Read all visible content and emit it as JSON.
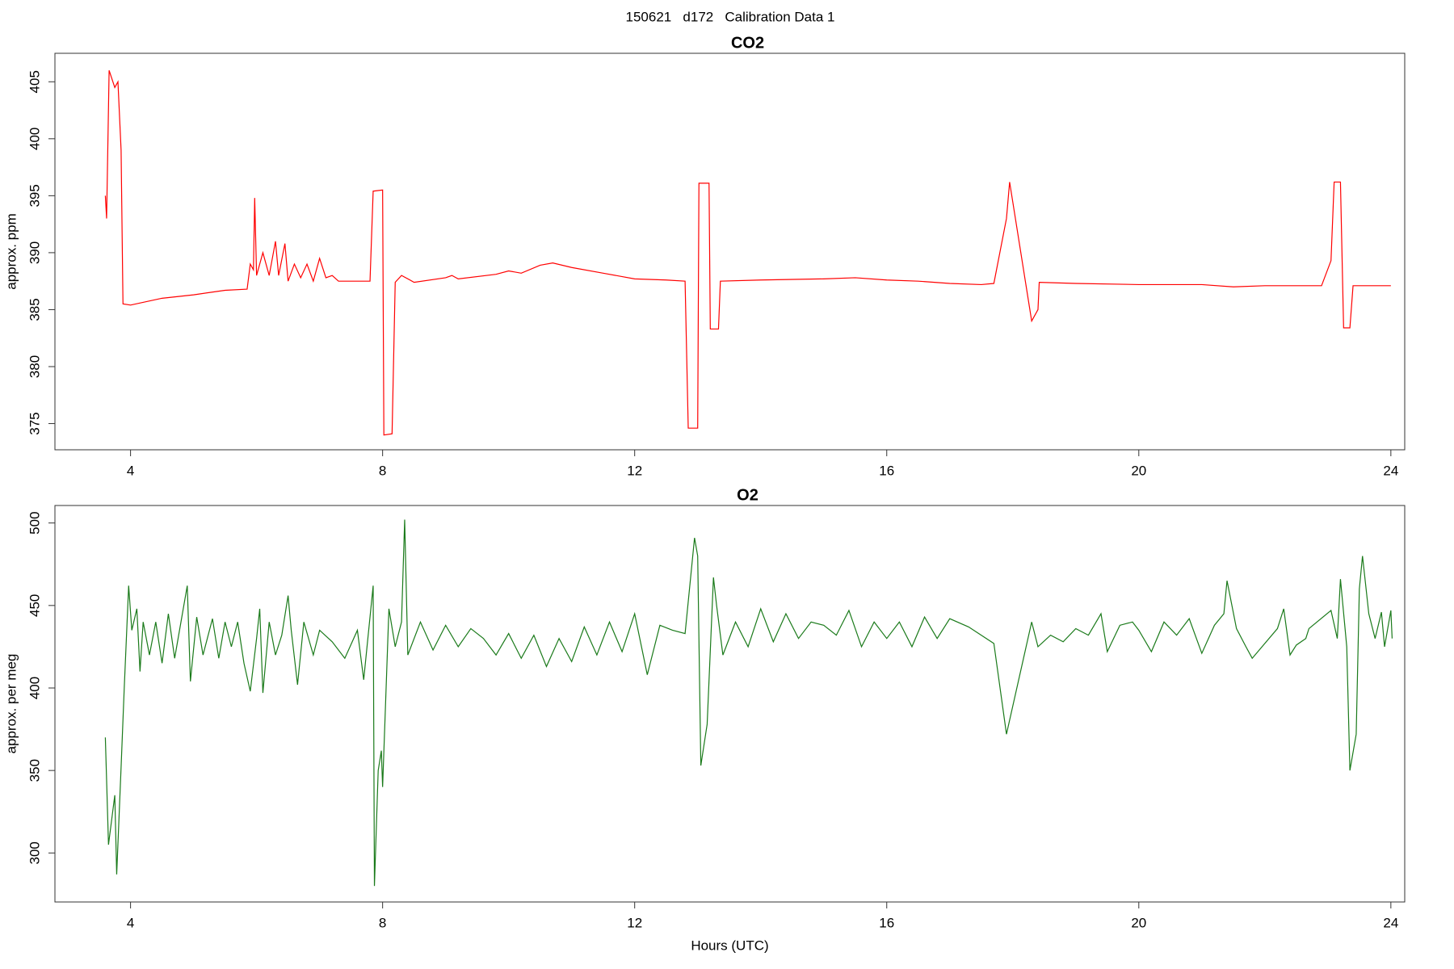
{
  "title": "150621   d172   Calibration Data 1",
  "chart_data": [
    {
      "type": "line",
      "title": "CO2",
      "y_label": "approx. ppm",
      "color": "#ff0000",
      "xlim": [
        2.8,
        24.22
      ],
      "xticks": [
        4,
        8,
        12,
        16,
        20,
        24
      ],
      "ylim": [
        372.7,
        407.5
      ],
      "yticks": [
        375,
        380,
        385,
        390,
        395,
        400,
        405
      ],
      "grid": false,
      "x": [
        3.6,
        3.62,
        3.66,
        3.75,
        3.8,
        3.85,
        3.88,
        4.0,
        4.5,
        5.0,
        5.5,
        5.85,
        5.9,
        5.95,
        5.97,
        6.0,
        6.1,
        6.2,
        6.3,
        6.35,
        6.45,
        6.5,
        6.6,
        6.7,
        6.8,
        6.9,
        7.0,
        7.1,
        7.2,
        7.3,
        7.5,
        7.8,
        7.85,
        8.0,
        8.02,
        8.15,
        8.2,
        8.3,
        8.5,
        9.0,
        9.1,
        9.2,
        9.8,
        10.0,
        10.2,
        10.5,
        10.7,
        11.0,
        11.5,
        12.0,
        12.5,
        12.8,
        12.85,
        13.0,
        13.02,
        13.18,
        13.2,
        13.33,
        13.36,
        14,
        15,
        15.5,
        16,
        16.5,
        17,
        17.5,
        17.7,
        17.9,
        17.95,
        18.3,
        18.4,
        18.42,
        19,
        20,
        21,
        21.5,
        22,
        22.9,
        23.05,
        23.1,
        23.2,
        23.25,
        23.35,
        23.4,
        24
      ],
      "values": [
        395,
        393,
        406,
        404.5,
        405,
        399,
        385.5,
        385.4,
        386,
        386.3,
        386.7,
        386.8,
        389,
        388.5,
        394.8,
        388,
        390,
        388,
        391,
        388,
        390.8,
        387.5,
        389,
        387.8,
        389,
        387.5,
        389.5,
        387.8,
        388,
        387.5,
        387.5,
        387.5,
        395.4,
        395.5,
        374,
        374.1,
        387.4,
        388,
        387.4,
        387.8,
        388,
        387.7,
        388.1,
        388.4,
        388.2,
        388.9,
        389.1,
        388.7,
        388.2,
        387.7,
        387.6,
        387.5,
        374.6,
        374.6,
        396.1,
        396.1,
        383.3,
        383.3,
        387.5,
        387.6,
        387.7,
        387.8,
        387.6,
        387.5,
        387.3,
        387.2,
        387.3,
        393,
        396.2,
        384,
        385,
        387.4,
        387.3,
        387.2,
        387.2,
        387.0,
        387.1,
        387.1,
        389.3,
        396.2,
        396.2,
        383.4,
        383.4,
        387.1,
        387.1
      ]
    },
    {
      "type": "line",
      "title": "O2",
      "y_label": "approx. per meg",
      "x_label": "Hours (UTC)",
      "color": "#1a7a1a",
      "xlim": [
        2.8,
        24.22
      ],
      "xticks": [
        4,
        8,
        12,
        16,
        20,
        24
      ],
      "ylim": [
        270.3,
        510.6
      ],
      "yticks": [
        300,
        350,
        400,
        450,
        500
      ],
      "grid": false,
      "x": [
        3.6,
        3.65,
        3.75,
        3.78,
        3.85,
        3.9,
        3.97,
        4.02,
        4.1,
        4.15,
        4.2,
        4.3,
        4.4,
        4.5,
        4.6,
        4.7,
        4.8,
        4.9,
        4.95,
        5.05,
        5.15,
        5.3,
        5.4,
        5.5,
        5.6,
        5.7,
        5.8,
        5.9,
        6.0,
        6.05,
        6.1,
        6.2,
        6.3,
        6.4,
        6.5,
        6.55,
        6.65,
        6.75,
        6.9,
        7.0,
        7.2,
        7.4,
        7.6,
        7.7,
        7.85,
        7.87,
        7.93,
        7.98,
        8.0,
        8.1,
        8.2,
        8.3,
        8.35,
        8.4,
        8.6,
        8.8,
        9.0,
        9.2,
        9.4,
        9.6,
        9.8,
        10.0,
        10.2,
        10.4,
        10.6,
        10.8,
        11.0,
        11.2,
        11.4,
        11.6,
        11.8,
        12.0,
        12.2,
        12.4,
        12.6,
        12.8,
        12.95,
        13.0,
        13.05,
        13.15,
        13.25,
        13.3,
        13.4,
        13.6,
        13.8,
        14.0,
        14.2,
        14.4,
        14.6,
        14.8,
        15.0,
        15.2,
        15.4,
        15.6,
        15.8,
        16.0,
        16.2,
        16.4,
        16.6,
        16.8,
        17.0,
        17.3,
        17.5,
        17.7,
        17.9,
        18.3,
        18.4,
        18.6,
        18.8,
        19.0,
        19.2,
        19.4,
        19.5,
        19.7,
        19.9,
        20.0,
        20.2,
        20.4,
        20.6,
        20.8,
        21.0,
        21.2,
        21.35,
        21.4,
        21.55,
        21.7,
        21.8,
        22.2,
        22.3,
        22.4,
        22.5,
        22.65,
        22.7,
        23.05,
        23.15,
        23.2,
        23.3,
        23.35,
        23.45,
        23.5,
        23.55,
        23.65,
        23.75,
        23.85,
        23.9,
        24.0,
        24.02
      ],
      "values": [
        370,
        305,
        335,
        287,
        352,
        400,
        462,
        435,
        448,
        410,
        440,
        420,
        440,
        415,
        445,
        418,
        440,
        462,
        404,
        443,
        420,
        442,
        418,
        440,
        425,
        440,
        415,
        398,
        430,
        448,
        397,
        440,
        420,
        432,
        456,
        435,
        402,
        440,
        420,
        435,
        428,
        418,
        435,
        405,
        462,
        280,
        350,
        362,
        340,
        448,
        425,
        440,
        502,
        420,
        440,
        423,
        438,
        425,
        436,
        430,
        420,
        433,
        418,
        432,
        413,
        430,
        416,
        437,
        420,
        440,
        422,
        445,
        408,
        438,
        435,
        433,
        491,
        480,
        353,
        378,
        467,
        450,
        420,
        440,
        425,
        448,
        428,
        445,
        430,
        440,
        438,
        432,
        447,
        425,
        440,
        430,
        440,
        425,
        443,
        430,
        442,
        437,
        432,
        427,
        372,
        440,
        425,
        432,
        428,
        436,
        432,
        445,
        422,
        438,
        440,
        435,
        422,
        440,
        432,
        442,
        421,
        438,
        445,
        465,
        436,
        425,
        418,
        436,
        448,
        420,
        426,
        430,
        436,
        447,
        430,
        466,
        425,
        350,
        372,
        460,
        480,
        445,
        430,
        446,
        425,
        447,
        430
      ]
    }
  ]
}
